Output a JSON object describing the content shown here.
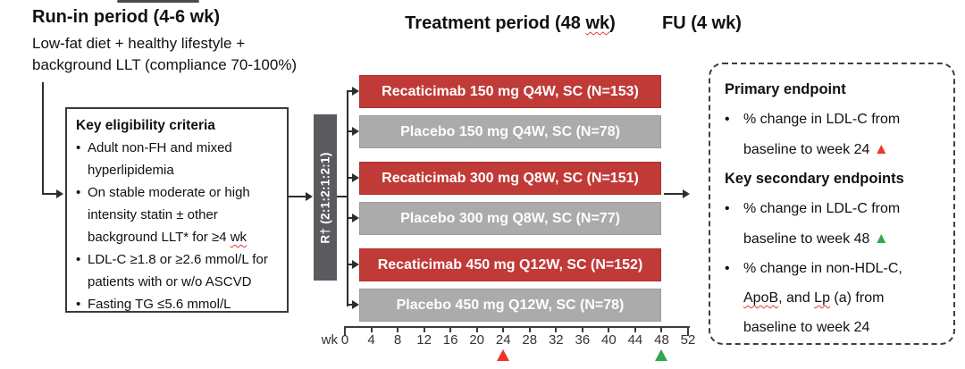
{
  "colors": {
    "active_arm": "#c03a38",
    "placebo_arm": "#ababab",
    "randomization_box": "#5b5b5f",
    "week24_marker": "#ed3626",
    "week48_marker": "#2fa84f",
    "spellcheck_underline": "#e03c31"
  },
  "runin": {
    "title": "Run-in period (4-6 wk)",
    "subtitle_line1": "Low-fat diet + healthy lifestyle +",
    "subtitle_line2": "background LLT (compliance 70-100%)"
  },
  "headers": {
    "treatment_pre": "Treatment period (48 ",
    "treatment_wavy": "wk",
    "treatment_post": ")",
    "fu": "FU (4 wk)"
  },
  "eligibility": {
    "title": "Key eligibility criteria",
    "bullet_char": "•",
    "items": [
      {
        "text": "Adult non-FH and mixed hyperlipidemia",
        "wavy": ""
      },
      {
        "text": "On stable moderate or high intensity statin ± other background LLT* for ≥4 ",
        "wavy": "wk"
      },
      {
        "text": "LDL-C ≥1.8 or ≥2.6 mmol/L for patients with or w/o ASCVD",
        "wavy": ""
      },
      {
        "text": "Fasting TG ≤5.6 mmol/L",
        "wavy": ""
      }
    ]
  },
  "randomization": {
    "label": "R† (2:1:2:1:2:1)"
  },
  "arms": [
    {
      "label": "Recaticimab 150 mg Q4W, SC (N=153)",
      "type": "active"
    },
    {
      "label": "Placebo 150 mg Q4W, SC (N=78)",
      "type": "placebo"
    },
    {
      "label": "Recaticimab 300 mg Q8W, SC (N=151)",
      "type": "active"
    },
    {
      "label": "Placebo 300 mg Q8W, SC (N=77)",
      "type": "placebo"
    },
    {
      "label": "Recaticimab 450 mg Q12W, SC (N=152)",
      "type": "active"
    },
    {
      "label": "Placebo 450 mg Q12W, SC (N=78)",
      "type": "placebo"
    }
  ],
  "axis": {
    "unit": "wk",
    "ticks": [
      "0",
      "4",
      "8",
      "12",
      "16",
      "20",
      "24",
      "28",
      "32",
      "36",
      "40",
      "44",
      "48",
      "52"
    ],
    "marker_week_24": "red triangle",
    "marker_week_48": "green triangle"
  },
  "endpoints": {
    "bullet_char": "•",
    "primary_title": "Primary endpoint",
    "primary_text": "% change in LDL-C from baseline to week 24 ",
    "primary_marker": "▲",
    "secondary_title": "Key secondary endpoints",
    "secondary1_text": "% change in LDL-C from baseline to week 48 ",
    "secondary1_marker": "▲",
    "secondary2_seg1": "% change in non-HDL-C,",
    "secondary2_wavy1": "ApoB",
    "secondary2_seg2": ", and ",
    "secondary2_wavy2": "Lp",
    "secondary2_seg3": " (a) from baseline to week 24"
  }
}
